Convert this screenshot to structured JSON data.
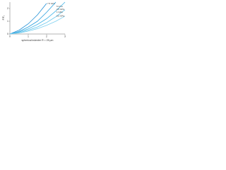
{
  "chart_data": {
    "type": "line",
    "xlabel": "spherical indenter R = 25 µm",
    "ylabel": "F/F₀",
    "x": [
      0,
      0.5,
      1,
      1.5,
      2,
      2.5,
      3
    ],
    "series": [
      {
        "name": "7.5 GPa",
        "color": "#1f8fd6",
        "values": [
          0,
          0.3,
          0.8,
          1.5,
          2.4,
          null,
          null
        ]
      },
      {
        "name": "5 GPa",
        "color": "#2aa0de",
        "values": [
          0,
          0.2,
          0.55,
          1.0,
          1.7,
          2.5,
          null
        ]
      },
      {
        "name": "2.5 GPa",
        "color": "#3fb3e6",
        "values": [
          0,
          0.15,
          0.4,
          0.75,
          1.2,
          1.8,
          2.5
        ]
      },
      {
        "name": "1 GPa",
        "color": "#5cc3ec",
        "values": [
          0,
          0.1,
          0.3,
          0.55,
          0.9,
          1.35,
          1.9
        ]
      },
      {
        "name": "0.5 GPa",
        "color": "#7fd1f0",
        "values": [
          0,
          0.08,
          0.22,
          0.42,
          0.68,
          1.0,
          1.4
        ]
      }
    ],
    "xlim": [
      0,
      3
    ],
    "ylim": [
      0,
      2.5
    ],
    "xticks": [
      0,
      1,
      2,
      3
    ],
    "yticks": [
      0,
      1,
      2
    ]
  }
}
